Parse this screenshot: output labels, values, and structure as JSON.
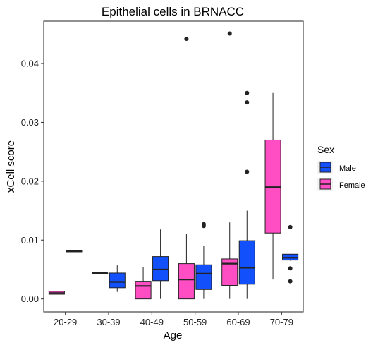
{
  "chart_data": {
    "type": "boxplot",
    "title": "Epithelial cells in BRNACC",
    "xlabel": "Age",
    "ylabel": "xCell score",
    "categories": [
      "20-29",
      "30-39",
      "40-49",
      "50-59",
      "60-69",
      "70-79"
    ],
    "ylim": [
      -0.0022,
      0.0472
    ],
    "yticks": [
      0.0,
      0.01,
      0.02,
      0.03,
      0.04
    ],
    "ytick_labels": [
      "0.00",
      "0.01",
      "0.02",
      "0.03",
      "0.04"
    ],
    "grid": false,
    "legend": {
      "title": "Sex",
      "position": "right",
      "entries": [
        {
          "name": "Male",
          "color": "#1150FA"
        },
        {
          "name": "Female",
          "color": "#FF4DC4"
        }
      ]
    },
    "series": [
      {
        "name": "Female",
        "color": "#FF4DC4",
        "boxes": [
          {
            "category": "20-29",
            "lower_whisker": 0.0008,
            "q1": 0.0008,
            "median": 0.001,
            "q3": 0.0013,
            "upper_whisker": 0.0014,
            "outliers": []
          },
          {
            "category": "30-39",
            "lower_whisker": 0.0044,
            "q1": 0.0044,
            "median": 0.0044,
            "q3": 0.0044,
            "upper_whisker": 0.0044,
            "outliers": []
          },
          {
            "category": "40-49",
            "lower_whisker": 0.0,
            "q1": 0.0,
            "median": 0.0022,
            "q3": 0.003,
            "upper_whisker": 0.0054,
            "outliers": []
          },
          {
            "category": "50-59",
            "lower_whisker": 0.0,
            "q1": 0.0,
            "median": 0.0033,
            "q3": 0.006,
            "upper_whisker": 0.011,
            "outliers": [
              0.0442
            ]
          },
          {
            "category": "60-69",
            "lower_whisker": 0.0,
            "q1": 0.0023,
            "median": 0.006,
            "q3": 0.0068,
            "upper_whisker": 0.013,
            "outliers": [
              0.0451
            ]
          },
          {
            "category": "70-79",
            "lower_whisker": 0.0033,
            "q1": 0.0112,
            "median": 0.019,
            "q3": 0.027,
            "upper_whisker": 0.035,
            "outliers": []
          }
        ]
      },
      {
        "name": "Male",
        "color": "#1150FA",
        "boxes": [
          {
            "category": "20-29",
            "lower_whisker": 0.008,
            "q1": 0.008,
            "median": 0.0081,
            "q3": 0.0082,
            "upper_whisker": 0.0082,
            "outliers": []
          },
          {
            "category": "30-39",
            "lower_whisker": 0.0012,
            "q1": 0.0019,
            "median": 0.0029,
            "q3": 0.0044,
            "upper_whisker": 0.0057,
            "outliers": []
          },
          {
            "category": "40-49",
            "lower_whisker": 0.0,
            "q1": 0.0031,
            "median": 0.005,
            "q3": 0.0072,
            "upper_whisker": 0.0118,
            "outliers": []
          },
          {
            "category": "50-59",
            "lower_whisker": 0.0,
            "q1": 0.0016,
            "median": 0.0043,
            "q3": 0.0058,
            "upper_whisker": 0.009,
            "outliers": [
              0.0124,
              0.0127
            ]
          },
          {
            "category": "60-69",
            "lower_whisker": 0.0,
            "q1": 0.0025,
            "median": 0.0053,
            "q3": 0.0099,
            "upper_whisker": 0.015,
            "outliers": [
              0.0216,
              0.0334,
              0.035
            ]
          },
          {
            "category": "70-79",
            "lower_whisker": 0.0065,
            "q1": 0.0066,
            "median": 0.007,
            "q3": 0.0076,
            "upper_whisker": 0.0076,
            "outliers": [
              0.0122,
              0.0052,
              0.003
            ]
          }
        ]
      }
    ]
  }
}
